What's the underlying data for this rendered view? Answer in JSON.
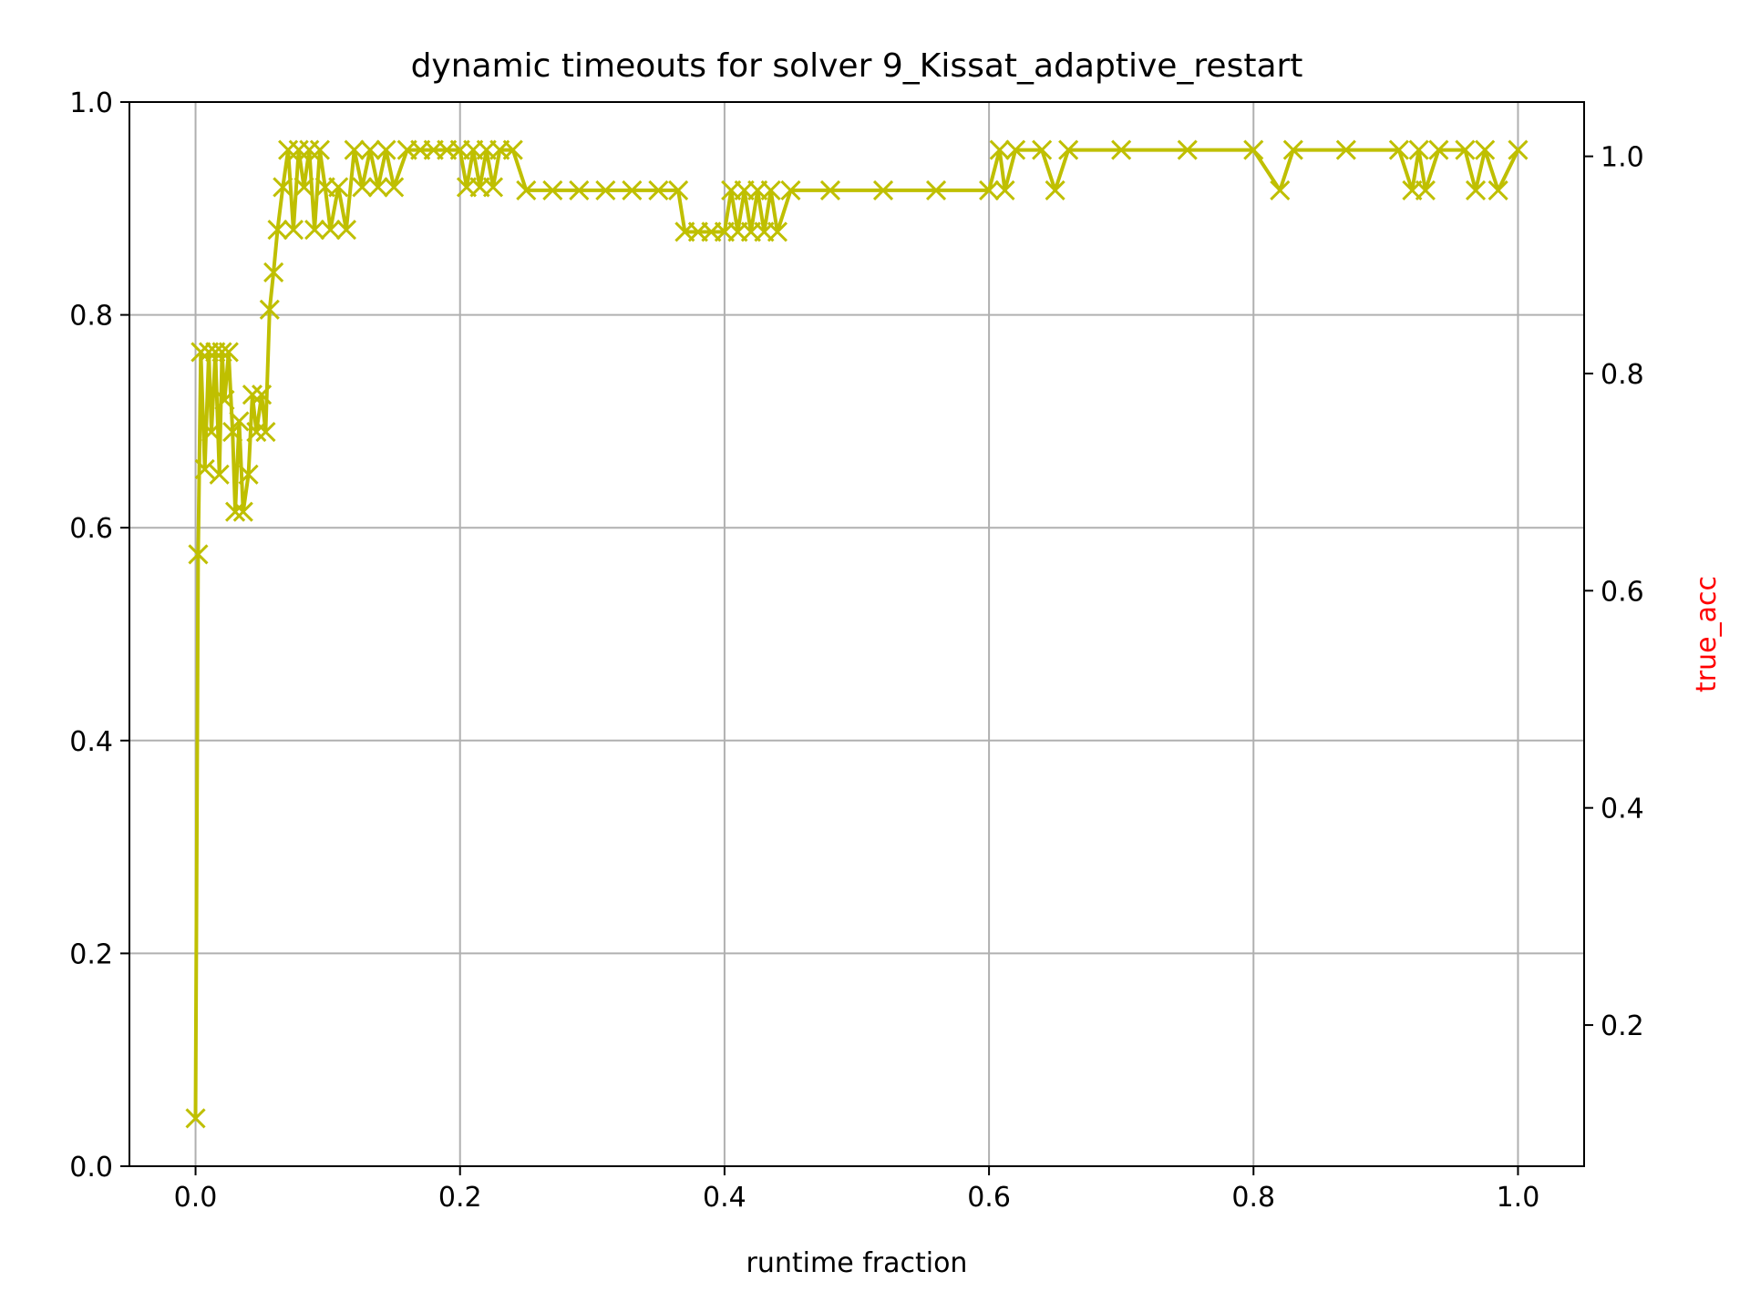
{
  "chart_data": {
    "type": "line",
    "title": "dynamic timeouts for solver 9_Kissat_adaptive_restart",
    "xlabel": "runtime fraction",
    "ylabel": "",
    "y2label": "true_acc",
    "xlim": [
      -0.05,
      1.05
    ],
    "ylim": [
      0.0,
      1.0
    ],
    "y2lim": [
      0.07,
      1.05
    ],
    "xticks": [
      "0.0",
      "0.2",
      "0.4",
      "0.6",
      "0.8",
      "1.0"
    ],
    "yticks": [
      "0.0",
      "0.2",
      "0.4",
      "0.6",
      "0.8",
      "1.0"
    ],
    "y2ticks": [
      "0.2",
      "0.4",
      "0.6",
      "0.8",
      "1.0"
    ],
    "grid": true,
    "marker": "x",
    "colors": {
      "series": "#bfbf00",
      "y2label": "#ff0000",
      "grid": "#b0b0b0",
      "axes": "#000000"
    },
    "series": [
      {
        "x": [
          0.0,
          0.002,
          0.004,
          0.007,
          0.01,
          0.012,
          0.015,
          0.018,
          0.02,
          0.022,
          0.025,
          0.028,
          0.03,
          0.033,
          0.036,
          0.04,
          0.043,
          0.046,
          0.05,
          0.053,
          0.056,
          0.059,
          0.062,
          0.066,
          0.07,
          0.074,
          0.078,
          0.082,
          0.086,
          0.09,
          0.094,
          0.098,
          0.102,
          0.108,
          0.114,
          0.12,
          0.126,
          0.132,
          0.138,
          0.144,
          0.15,
          0.16,
          0.17,
          0.18,
          0.19,
          0.2,
          0.205,
          0.21,
          0.215,
          0.22,
          0.225,
          0.23,
          0.24,
          0.25,
          0.27,
          0.29,
          0.31,
          0.33,
          0.35,
          0.365,
          0.37,
          0.38,
          0.39,
          0.4,
          0.405,
          0.41,
          0.415,
          0.42,
          0.425,
          0.43,
          0.435,
          0.44,
          0.45,
          0.48,
          0.52,
          0.56,
          0.6,
          0.608,
          0.612,
          0.62,
          0.64,
          0.65,
          0.66,
          0.7,
          0.75,
          0.8,
          0.82,
          0.83,
          0.87,
          0.91,
          0.92,
          0.925,
          0.93,
          0.94,
          0.96,
          0.968,
          0.975,
          0.985,
          1.0
        ],
        "y": [
          0.045,
          0.575,
          0.765,
          0.655,
          0.765,
          0.69,
          0.765,
          0.65,
          0.765,
          0.72,
          0.765,
          0.69,
          0.615,
          0.7,
          0.615,
          0.65,
          0.725,
          0.69,
          0.725,
          0.69,
          0.805,
          0.84,
          0.88,
          0.92,
          0.955,
          0.88,
          0.955,
          0.92,
          0.955,
          0.88,
          0.955,
          0.92,
          0.88,
          0.92,
          0.88,
          0.955,
          0.92,
          0.955,
          0.92,
          0.955,
          0.92,
          0.955,
          0.955,
          0.955,
          0.955,
          0.955,
          0.92,
          0.955,
          0.92,
          0.955,
          0.92,
          0.955,
          0.955,
          0.917,
          0.917,
          0.917,
          0.917,
          0.917,
          0.917,
          0.917,
          0.878,
          0.878,
          0.878,
          0.878,
          0.917,
          0.878,
          0.917,
          0.878,
          0.917,
          0.878,
          0.917,
          0.878,
          0.917,
          0.917,
          0.917,
          0.917,
          0.917,
          0.955,
          0.917,
          0.955,
          0.955,
          0.917,
          0.955,
          0.955,
          0.955,
          0.955,
          0.917,
          0.955,
          0.955,
          0.955,
          0.917,
          0.955,
          0.917,
          0.955,
          0.955,
          0.917,
          0.955,
          0.917,
          0.955
        ]
      }
    ]
  }
}
